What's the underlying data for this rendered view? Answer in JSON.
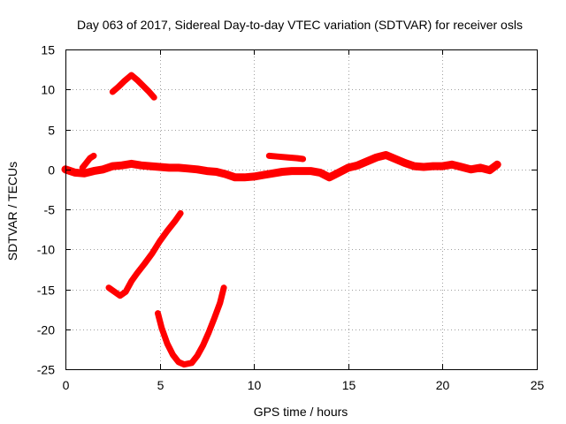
{
  "chart_data": {
    "type": "line",
    "title": "Day 063 of 2017, Sidereal Day-to-day VTEC variation (SDTVAR) for receiver osls",
    "xlabel": "GPS time / hours",
    "ylabel": "SDTVAR / TECUs",
    "xlim": [
      0,
      25
    ],
    "ylim": [
      -25,
      15
    ],
    "xticks": [
      "0",
      "5",
      "10",
      "15",
      "20",
      "25"
    ],
    "yticks": [
      "15",
      "10",
      "5",
      "0",
      "-5",
      "-10",
      "-15",
      "-20",
      "-25"
    ],
    "grid": true,
    "series_color": "#ff0000",
    "series": [
      {
        "name": "main-trace",
        "x": [
          0,
          0.5,
          1.0,
          1.5,
          2.0,
          2.5,
          3.0,
          3.5,
          4.0,
          4.5,
          5.0,
          5.5,
          6.0,
          6.5,
          7.0,
          7.5,
          8.0,
          8.5,
          9.0,
          9.5,
          10.0,
          10.5,
          11.0,
          11.5,
          12.0,
          12.5,
          13.0,
          13.5,
          14.0,
          14.5,
          15.0,
          15.5,
          16.0,
          16.5,
          17.0,
          17.5,
          18.0,
          18.5,
          19.0,
          19.5,
          20.0,
          20.5,
          21.0,
          21.5,
          22.0,
          22.5,
          22.9
        ],
        "y": [
          0,
          -0.4,
          -0.5,
          -0.2,
          0.0,
          0.4,
          0.5,
          0.7,
          0.5,
          0.4,
          0.3,
          0.2,
          0.2,
          0.1,
          0.0,
          -0.2,
          -0.3,
          -0.6,
          -1.0,
          -1.0,
          -0.9,
          -0.7,
          -0.5,
          -0.3,
          -0.2,
          -0.2,
          -0.2,
          -0.4,
          -1.0,
          -0.4,
          0.2,
          0.5,
          1.0,
          1.5,
          1.8,
          1.3,
          0.8,
          0.4,
          0.3,
          0.4,
          0.4,
          0.6,
          0.3,
          0.0,
          0.2,
          -0.1,
          0.6
        ]
      },
      {
        "name": "early-rise",
        "x": [
          0.9,
          1.1,
          1.3,
          1.5
        ],
        "y": [
          0.2,
          0.8,
          1.4,
          1.7
        ]
      },
      {
        "name": "high-arc",
        "x": [
          2.5,
          2.8,
          3.1,
          3.5,
          3.8,
          4.1,
          4.4,
          4.7
        ],
        "y": [
          9.7,
          10.3,
          11.0,
          11.8,
          11.2,
          10.5,
          9.8,
          9.0
        ]
      },
      {
        "name": "short-segment",
        "x": [
          10.8,
          11.3,
          11.8,
          12.3,
          12.6
        ],
        "y": [
          1.7,
          1.6,
          1.5,
          1.4,
          1.3
        ]
      },
      {
        "name": "falling-then-rising",
        "x": [
          2.3,
          2.6,
          2.9,
          3.2,
          3.5,
          3.8,
          4.2,
          4.6,
          5.0,
          5.4,
          5.8,
          6.1
        ],
        "y": [
          -14.8,
          -15.3,
          -15.8,
          -15.3,
          -14.0,
          -13.0,
          -11.8,
          -10.5,
          -9.0,
          -7.7,
          -6.5,
          -5.5
        ]
      },
      {
        "name": "deep-trough",
        "x": [
          4.9,
          5.1,
          5.4,
          5.7,
          6.0,
          6.3,
          6.7,
          7.0,
          7.3,
          7.6,
          7.9,
          8.2,
          8.4
        ],
        "y": [
          -18.0,
          -19.8,
          -21.8,
          -23.2,
          -24.1,
          -24.4,
          -24.2,
          -23.3,
          -22.0,
          -20.4,
          -18.6,
          -16.7,
          -14.8
        ]
      }
    ]
  }
}
